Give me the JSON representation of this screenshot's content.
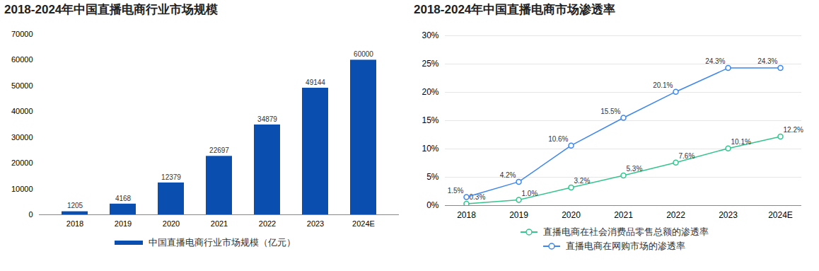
{
  "chart_data": [
    {
      "type": "bar",
      "title": "2018-2024年中国直播电商行业市场规模",
      "categories": [
        "2018",
        "2019",
        "2020",
        "2021",
        "2022",
        "2023",
        "2024E"
      ],
      "series": [
        {
          "name": "中国直播电商行业市场规模（亿元）",
          "color": "#0a4fb0",
          "values": [
            1205,
            4168,
            12379,
            22697,
            34879,
            49144,
            60000
          ]
        }
      ],
      "ylim": [
        0,
        70000
      ],
      "yticks": [
        0,
        10000,
        20000,
        30000,
        40000,
        50000,
        60000,
        70000
      ],
      "grid": false,
      "data_labels": true,
      "legend": "bottom"
    },
    {
      "type": "line",
      "title": "2018-2024年中国直播电商市场渗透率",
      "categories": [
        "2018",
        "2019",
        "2020",
        "2021",
        "2022",
        "2023",
        "2024E"
      ],
      "series": [
        {
          "name": "直播电商在社会消费品零售总额的渗透率",
          "color": "#36c48e",
          "marker": "circle",
          "values": [
            0.3,
            1.0,
            3.2,
            5.3,
            7.6,
            10.1,
            12.2
          ],
          "value_labels": [
            "0.3%",
            "1.0%",
            "3.2%",
            "5.3%",
            "7.6%",
            "10.1%",
            "12.2%"
          ]
        },
        {
          "name": "直播电商在网购市场的渗透率",
          "color": "#3d86f0",
          "marker": "circle",
          "values": [
            1.5,
            4.2,
            10.6,
            15.5,
            20.1,
            24.3,
            24.3
          ],
          "value_labels": [
            "1.5%",
            "4.2%",
            "10.6%",
            "15.5%",
            "20.1%",
            "24.3%",
            "24.3%"
          ]
        }
      ],
      "ylim": [
        0,
        30
      ],
      "yticks": [
        {
          "value": 0,
          "label": "0%"
        },
        {
          "value": 5,
          "label": "5%"
        },
        {
          "value": 10,
          "label": "10%"
        },
        {
          "value": 15,
          "label": "15%"
        },
        {
          "value": 20,
          "label": "20%"
        },
        {
          "value": 25,
          "label": "25%"
        },
        {
          "value": 30,
          "label": "30%"
        }
      ],
      "grid": true,
      "data_labels": true,
      "legend": "bottom"
    }
  ]
}
